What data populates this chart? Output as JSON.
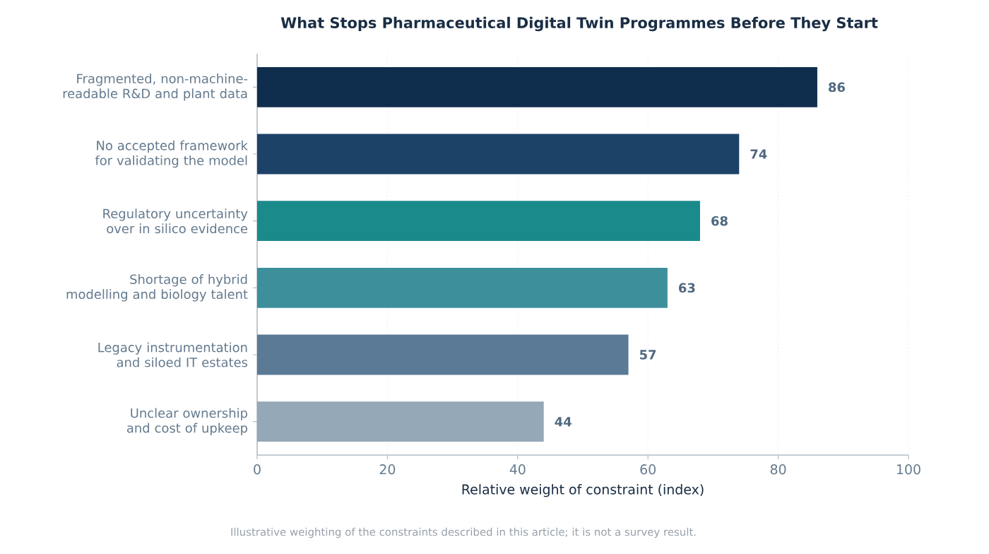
{
  "chart_data": {
    "type": "bar",
    "orientation": "horizontal",
    "title": "What Stops Pharmaceutical Digital Twin Programmes Before They Start",
    "xlabel": "Relative weight of constraint (index)",
    "categories": [
      "Fragmented, non-machine-readable R&D and plant data",
      "No accepted framework for validating the model",
      "Regulatory uncertainty over in silico evidence",
      "Shortage of hybrid modelling and biology talent",
      "Legacy instrumentation and siloed IT estates",
      "Unclear ownership and cost of upkeep"
    ],
    "values": [
      86,
      74,
      68,
      63,
      57,
      44
    ],
    "colors": [
      "#0f2d4d",
      "#1d4268",
      "#1b8a8a",
      "#3d8f9c",
      "#5a7a95",
      "#94a8b8"
    ],
    "xlim": [
      0,
      100
    ],
    "xticks": [
      0,
      20,
      40,
      60,
      80,
      100
    ],
    "grid": "x",
    "data_labels": true,
    "annotations": [
      "Illustrative weighting of the constraints described in this article; it is not a survey result."
    ]
  }
}
